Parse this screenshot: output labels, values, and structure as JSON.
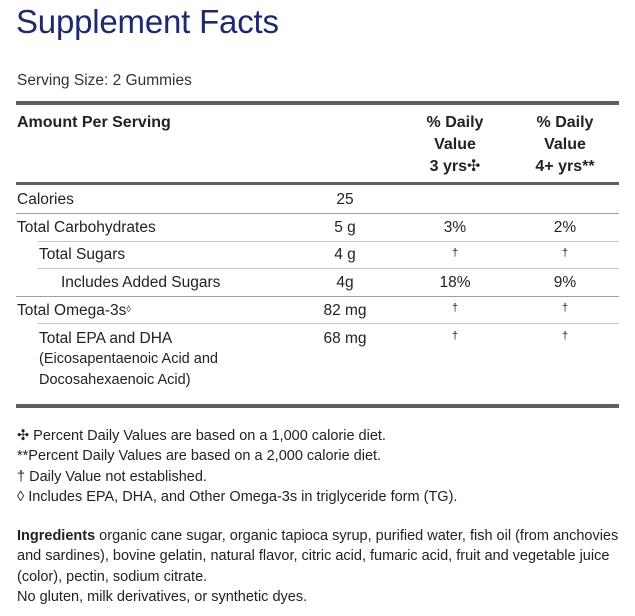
{
  "title": "Supplement Facts",
  "serving_size": "Serving Size: 2 Gummies",
  "header": {
    "amount_per_serving": "Amount Per Serving",
    "dv_3yrs": [
      "% Daily",
      "Value",
      "3 yrs✣"
    ],
    "dv_4yrs": [
      "% Daily",
      "Value",
      "4+ yrs**"
    ]
  },
  "rows": [
    {
      "name": "Calories",
      "amount": "25",
      "dv3": "",
      "dv4": ""
    },
    {
      "name": "Total Carbohydrates",
      "amount": "5 g",
      "dv3": "3%",
      "dv4": "2%"
    },
    {
      "name": "Total Sugars",
      "amount": "4 g",
      "dv3": "†",
      "dv4": "†"
    },
    {
      "name": "Includes Added Sugars",
      "amount": "4g",
      "dv3": "18%",
      "dv4": "9%"
    },
    {
      "name": "Total Omega-3s",
      "name_mark": "◊",
      "amount": "82 mg",
      "dv3": "†",
      "dv4": "†"
    },
    {
      "name": "Total EPA and DHA",
      "sub1": "(Eicosapentaenoic Acid and",
      "sub2": "Docosahexaenoic Acid)",
      "amount": "68 mg",
      "dv3": "†",
      "dv4": "†"
    }
  ],
  "footnotes": [
    "✣ Percent Daily Values are based on a 1,000 calorie diet.",
    "**Percent Daily Values are based on a 2,000 calorie diet.",
    "† Daily Value not established.",
    "◊ Includes EPA, DHA, and Other Omega-3s in triglyceride form (TG)."
  ],
  "ingredients": {
    "label": "Ingredients",
    "text": " organic cane sugar, organic tapioca syrup, purified water, fish oil (from anchovies and sardines), bovine gelatin, natural flavor, citric acid, fumaric acid, fruit and vegetable juice (color), pectin, sodium citrate."
  },
  "note": "No gluten, milk derivatives, or synthetic dyes."
}
